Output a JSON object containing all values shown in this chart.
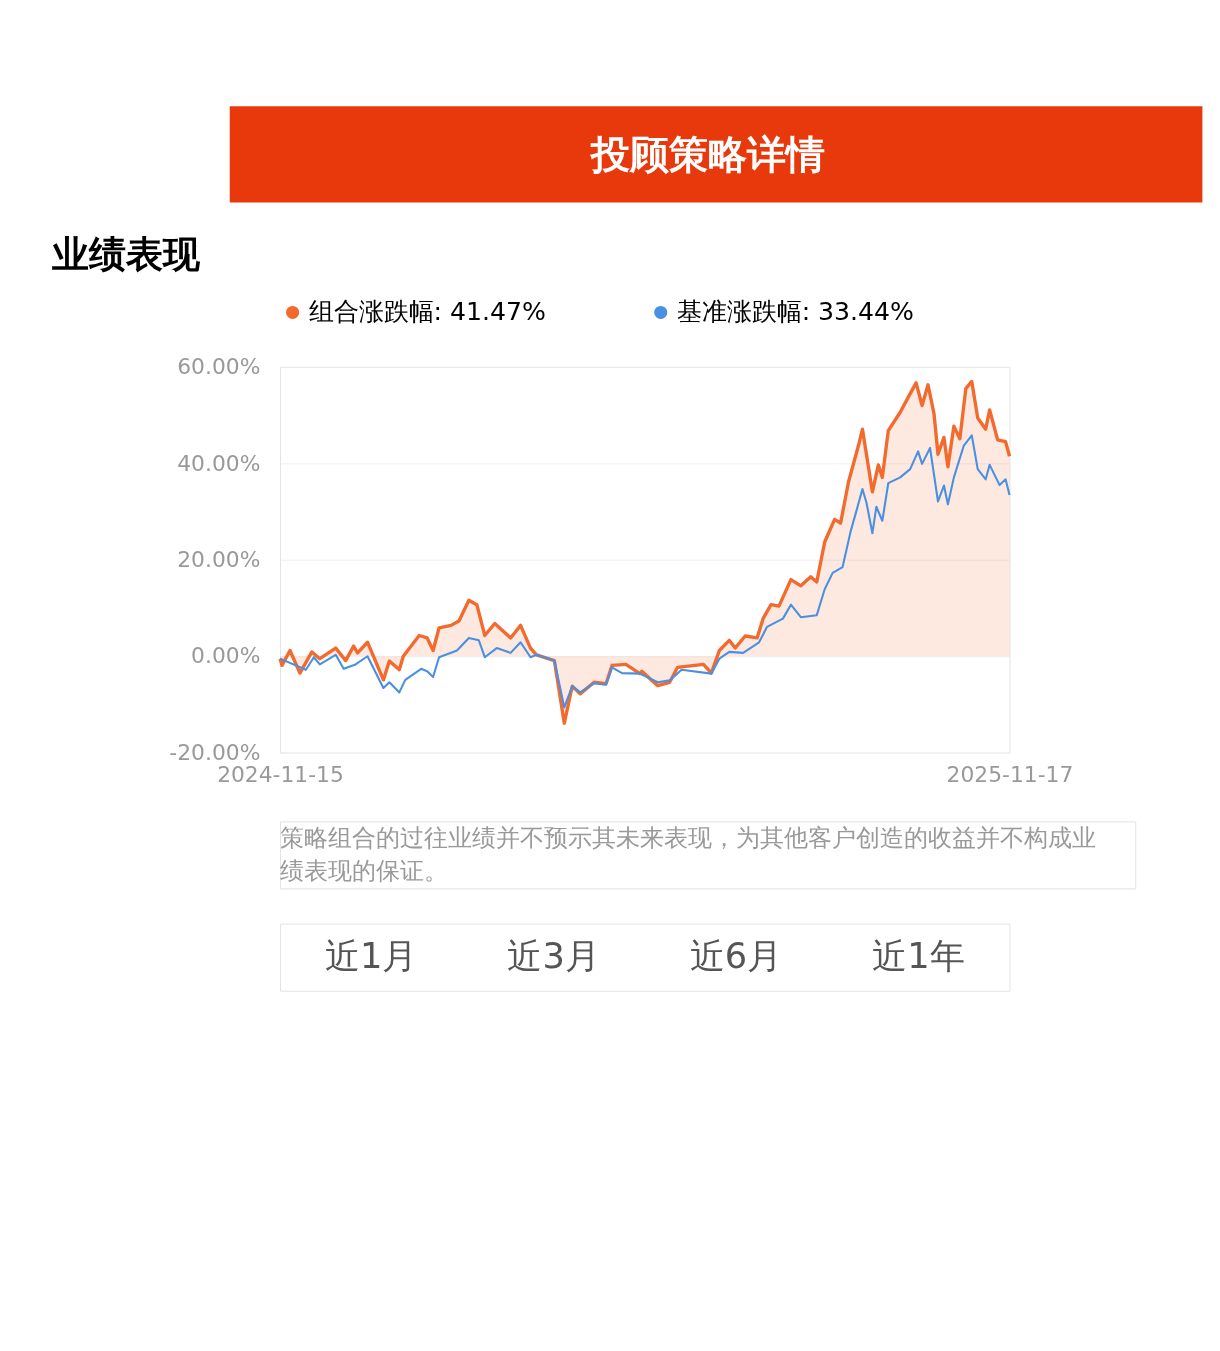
{
  "chart_data": {
    "type": "line",
    "title": "业绩表现",
    "annotations": [
      "投顾策略详情",
      "策略组合的过往业绩并不预示其未来表现，为其他客户创造的收益并不构成业绩表现的保证。",
      "近1月",
      "近3月",
      "近6月",
      "近1年"
    ],
    "xlim": [
      "2024-11-15",
      "2025-11-17"
    ],
    "xticks": [
      "2024-11-15",
      "2025-11-17"
    ],
    "ylim": [
      -20,
      60
    ],
    "yticks": [
      {
        "value": -20,
        "label": "-20.00%"
      },
      {
        "value": 0,
        "label": "0.00%"
      },
      {
        "value": 20,
        "label": "20.00%"
      },
      {
        "value": 40,
        "label": "40.00%"
      },
      {
        "value": 60,
        "label": "60.00%"
      }
    ],
    "grid": "y",
    "legend": "top",
    "series": [
      {
        "name": "组合涨跌幅: 41.47%",
        "type": "area",
        "color": "#f26a2e",
        "x": [
          "2024-11-15",
          "2024-11-16",
          "2024-11-20",
          "2024-11-25",
          "2024-12-01",
          "2024-12-05",
          "2024-12-13",
          "2024-12-18",
          "2024-12-22",
          "2024-12-24",
          "2024-12-29",
          "2025-01-06",
          "2025-01-09",
          "2025-01-14",
          "2025-01-16",
          "2025-01-24",
          "2025-01-28",
          "2025-01-31",
          "2025-02-03",
          "2025-02-09",
          "2025-02-13",
          "2025-02-18",
          "2025-02-22",
          "2025-02-26",
          "2025-03-03",
          "2025-03-11",
          "2025-03-16",
          "2025-03-21",
          "2025-03-24",
          "2025-04-02",
          "2025-04-07",
          "2025-04-11",
          "2025-04-15",
          "2025-04-22",
          "2025-04-28",
          "2025-05-01",
          "2025-05-08",
          "2025-05-15",
          "2025-05-16",
          "2025-05-24",
          "2025-05-30",
          "2025-06-03",
          "2025-06-16",
          "2025-06-20",
          "2025-06-24",
          "2025-06-29",
          "2025-07-02",
          "2025-07-07",
          "2025-07-13",
          "2025-07-16",
          "2025-07-20",
          "2025-07-24",
          "2025-07-30",
          "2025-08-04",
          "2025-08-09",
          "2025-08-12",
          "2025-08-16",
          "2025-08-21",
          "2025-08-24",
          "2025-08-28",
          "2025-09-02",
          "2025-09-04",
          "2025-09-09",
          "2025-09-12",
          "2025-09-14",
          "2025-09-17",
          "2025-09-23",
          "2025-09-27",
          "2025-10-01",
          "2025-10-04",
          "2025-10-07",
          "2025-10-10",
          "2025-10-12",
          "2025-10-15",
          "2025-10-17",
          "2025-10-20",
          "2025-10-23",
          "2025-10-26",
          "2025-10-29",
          "2025-11-01",
          "2025-11-05",
          "2025-11-07",
          "2025-11-11",
          "2025-11-15",
          "2025-11-17"
        ],
        "values": [
          -0.5,
          -1.9,
          1.2,
          -3.5,
          0.9,
          -0.5,
          1.7,
          -0.9,
          2.1,
          0.7,
          2.9,
          -4.9,
          -1.0,
          -2.8,
          0,
          4.3,
          3.8,
          1.2,
          5.9,
          6.4,
          7.3,
          11.6,
          10.7,
          4.3,
          6.8,
          3.8,
          6.4,
          1.7,
          0.3,
          -0.9,
          -13.9,
          -6.2,
          -7.8,
          -5.4,
          -5.7,
          -1.9,
          -1.7,
          -3.6,
          -3.1,
          -6.1,
          -5.4,
          -2.3,
          -1.7,
          -3.5,
          1.2,
          3.3,
          1.7,
          4.2,
          3.8,
          7.8,
          10.7,
          10.4,
          15.9,
          14.6,
          16.5,
          15.4,
          23.7,
          28.4,
          27.6,
          36.2,
          43.7,
          47.1,
          34.1,
          39.7,
          37.1,
          46.8,
          50.6,
          53.7,
          56.7,
          52.0,
          56.3,
          50.3,
          41.9,
          45.4,
          39.3,
          47.7,
          45.1,
          55.5,
          57.0,
          49.4,
          47.1,
          51.1,
          44.9,
          44.5,
          41.47
        ]
      },
      {
        "name": "基准涨跌幅: 33.44%",
        "color": "#4a90e2",
        "x": [
          "2024-11-15",
          "2024-11-28",
          "2024-12-02",
          "2024-12-05",
          "2024-12-13",
          "2024-12-17",
          "2024-12-23",
          "2024-12-29",
          "2025-01-06",
          "2025-01-09",
          "2025-01-14",
          "2025-01-17",
          "2025-01-25",
          "2025-01-28",
          "2025-01-31",
          "2025-02-03",
          "2025-02-12",
          "2025-02-18",
          "2025-02-23",
          "2025-02-26",
          "2025-03-04",
          "2025-03-11",
          "2025-03-16",
          "2025-03-21",
          "2025-03-24",
          "2025-04-02",
          "2025-04-07",
          "2025-04-11",
          "2025-04-15",
          "2025-04-22",
          "2025-04-28",
          "2025-05-01",
          "2025-05-06",
          "2025-05-15",
          "2025-05-24",
          "2025-05-30",
          "2025-06-05",
          "2025-06-20",
          "2025-06-24",
          "2025-06-29",
          "2025-07-06",
          "2025-07-14",
          "2025-07-18",
          "2025-07-26",
          "2025-07-30",
          "2025-08-04",
          "2025-08-12",
          "2025-08-16",
          "2025-08-20",
          "2025-08-25",
          "2025-08-29",
          "2025-09-01",
          "2025-09-04",
          "2025-09-06",
          "2025-09-09",
          "2025-09-11",
          "2025-09-14",
          "2025-09-17",
          "2025-09-23",
          "2025-09-28",
          "2025-10-02",
          "2025-10-04",
          "2025-10-08",
          "2025-10-12",
          "2025-10-15",
          "2025-10-17",
          "2025-10-20",
          "2025-10-25",
          "2025-10-29",
          "2025-11-01",
          "2025-11-05",
          "2025-11-07",
          "2025-11-12",
          "2025-11-15",
          "2025-11-17"
        ],
        "values": [
          -0.5,
          -2.8,
          -0.2,
          -1.7,
          0.3,
          -2.6,
          -1.7,
          0,
          -6.6,
          -5.4,
          -7.5,
          -4.9,
          -2.6,
          -3.1,
          -4.3,
          -0.2,
          1.2,
          3.8,
          3.3,
          -0.2,
          1.7,
          0.7,
          2.9,
          -0.2,
          0.3,
          -0.9,
          -10.6,
          -6.2,
          -7.5,
          -5.6,
          -5.9,
          -2.3,
          -3.5,
          -3.6,
          -5.4,
          -5.0,
          -2.8,
          -3.6,
          -0.5,
          0.9,
          0.7,
          2.9,
          6.1,
          7.8,
          10.7,
          8.1,
          8.5,
          13.9,
          17.3,
          18.5,
          25.8,
          30.2,
          34.7,
          31.9,
          25.5,
          31.0,
          28.1,
          35.9,
          37.1,
          38.8,
          42.5,
          39.9,
          43.2,
          32.1,
          35.4,
          31.5,
          37.1,
          43.7,
          45.8,
          38.8,
          36.7,
          39.7,
          35.5,
          36.7,
          33.44
        ]
      }
    ]
  }
}
